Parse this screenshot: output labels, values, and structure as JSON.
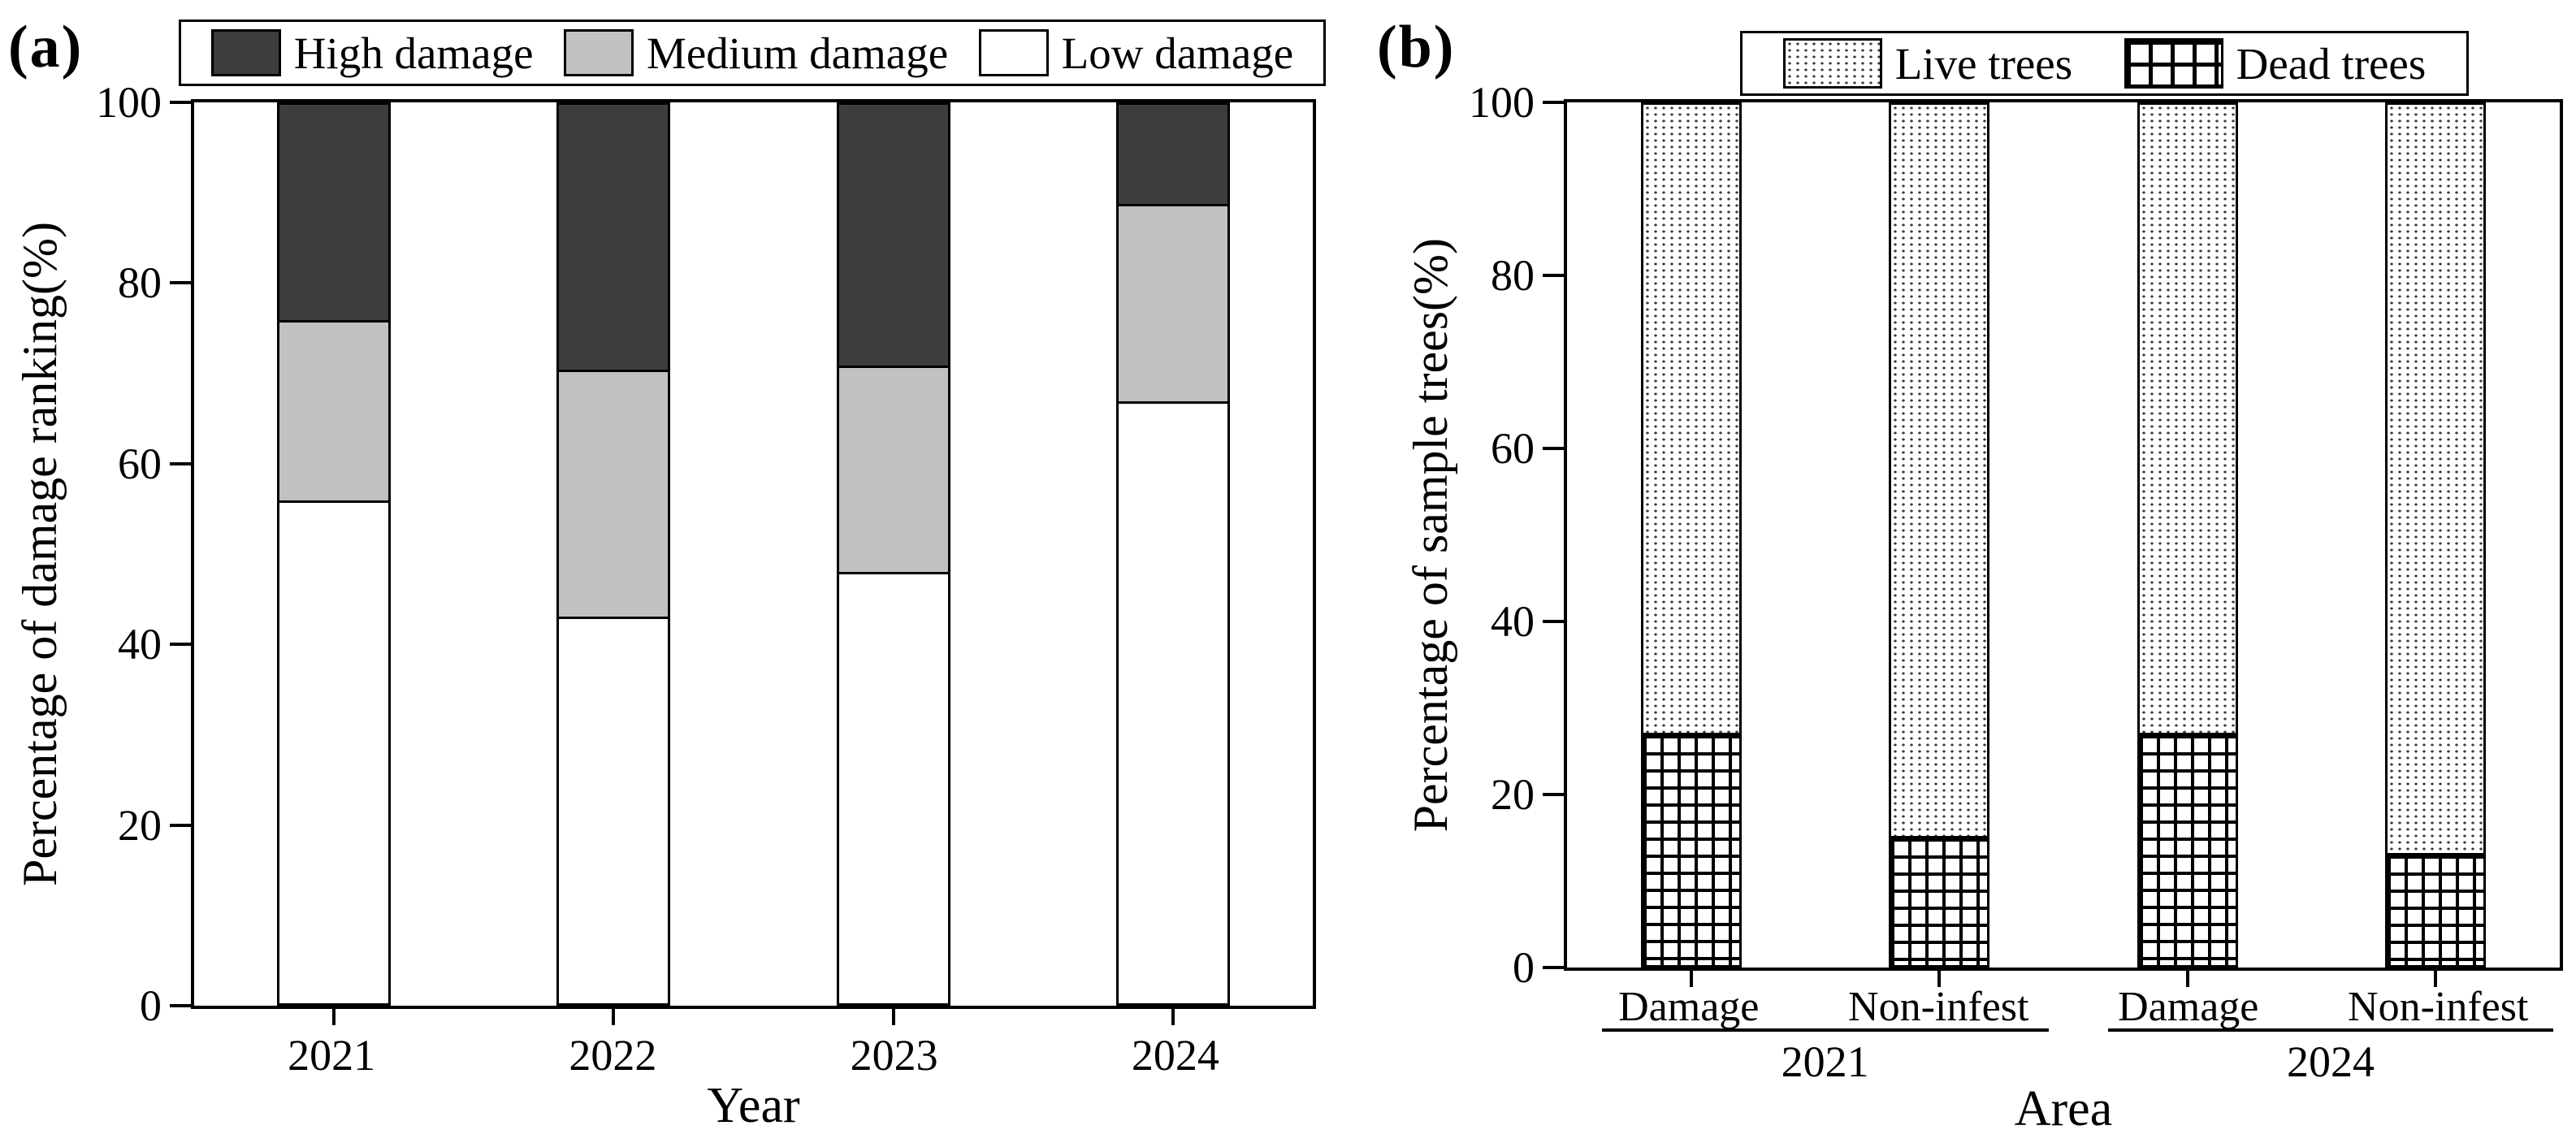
{
  "figure_type": "two-panel stacked bar figure",
  "colors": {
    "high_damage": "#3d3d3d",
    "medium_damage": "#c1c1c1",
    "low_damage": "#ffffff",
    "axis": "#000000"
  },
  "chart_data": [
    {
      "type": "bar",
      "stacked": true,
      "panel_label": "(a)",
      "xlabel": "Year",
      "ylabel": "Percentage of damage ranking(%)",
      "categories": [
        "2021",
        "2022",
        "2023",
        "2024"
      ],
      "series": [
        {
          "name": "Low damage",
          "values": [
            56,
            43,
            48,
            67
          ],
          "fill": "#ffffff"
        },
        {
          "name": "Medium damage",
          "values": [
            20,
            27.5,
            23,
            22
          ],
          "fill": "#c1c1c1"
        },
        {
          "name": "High damage",
          "values": [
            24,
            29.5,
            29,
            11
          ],
          "fill": "#3d3d3d"
        }
      ],
      "ylim": [
        0,
        100
      ],
      "yticks": [
        0,
        20,
        40,
        60,
        80,
        100
      ],
      "grid": false,
      "legend_position": "top",
      "legend": [
        {
          "label": "High damage",
          "fill": "#3d3d3d"
        },
        {
          "label": "Medium damage",
          "fill": "#c1c1c1"
        },
        {
          "label": "Low damage",
          "fill": "#ffffff"
        }
      ]
    },
    {
      "type": "bar",
      "stacked": true,
      "panel_label": "(b)",
      "xlabel": "Area",
      "ylabel": "Percentage of sample trees(%)",
      "categories": [
        "Damage",
        "Non-infest",
        "Damage",
        "Non-infest"
      ],
      "groups": [
        {
          "label": "2021",
          "span": [
            0,
            1
          ]
        },
        {
          "label": "2024",
          "span": [
            2,
            3
          ]
        }
      ],
      "series": [
        {
          "name": "Dead trees",
          "values": [
            27,
            15,
            27,
            13
          ],
          "pattern": "grid"
        },
        {
          "name": "Live trees",
          "values": [
            73,
            85,
            73,
            87
          ],
          "pattern": "dots"
        }
      ],
      "ylim": [
        0,
        100
      ],
      "yticks": [
        0,
        20,
        40,
        60,
        80,
        100
      ],
      "grid": false,
      "legend_position": "top",
      "legend": [
        {
          "label": "Live trees",
          "pattern": "dots"
        },
        {
          "label": "Dead trees",
          "pattern": "grid"
        }
      ]
    }
  ]
}
